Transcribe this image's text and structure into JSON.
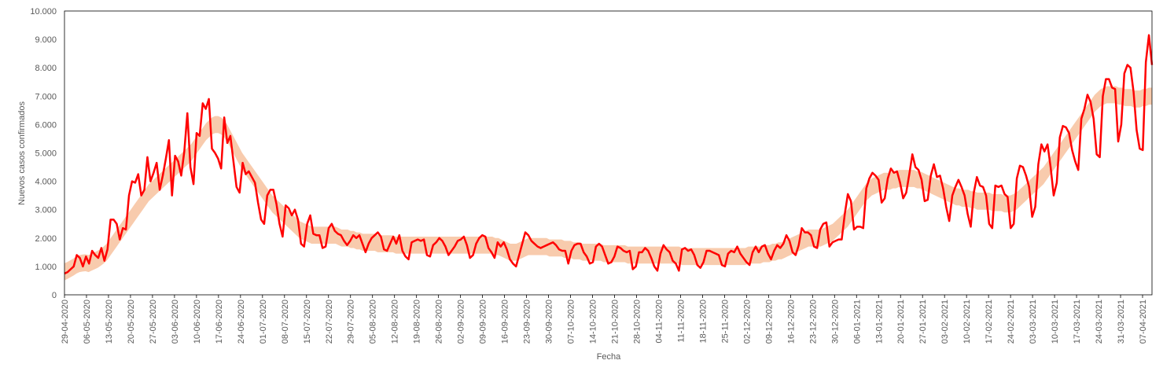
{
  "chart_data": {
    "type": "line",
    "title": "",
    "xlabel": "Fecha",
    "ylabel": "Nuevos casos confirmados",
    "ylim": [
      0,
      10000
    ],
    "yticks": [
      0,
      1000,
      2000,
      3000,
      4000,
      5000,
      6000,
      7000,
      8000,
      9000,
      10000
    ],
    "ytick_labels": [
      "0",
      "1.000",
      "2.000",
      "3.000",
      "4.000",
      "5.000",
      "6.000",
      "7.000",
      "8.000",
      "9.000",
      "10.000"
    ],
    "xticks": [
      "29-04-2020",
      "06-05-2020",
      "13-05-2020",
      "20-05-2020",
      "27-05-2020",
      "03-06-2020",
      "10-06-2020",
      "17-06-2020",
      "24-06-2020",
      "01-07-2020",
      "08-07-2020",
      "15-07-2020",
      "22-07-2020",
      "29-07-2020",
      "05-08-2020",
      "12-08-2020",
      "19-08-2020",
      "26-08-2020",
      "02-09-2020",
      "09-09-2020",
      "16-09-2020",
      "23-09-2020",
      "30-09-2020",
      "07-10-2020",
      "14-10-2020",
      "21-10-2020",
      "28-10-2020",
      "04-11-2020",
      "11-11-2020",
      "18-11-2020",
      "25-11-2020",
      "02-12-2020",
      "09-12-2020",
      "16-12-2020",
      "23-12-2020",
      "30-12-2020",
      "06-01-2021",
      "13-01-2021",
      "20-01-2021",
      "27-01-2021",
      "03-02-2021",
      "10-02-2021",
      "17-02-2021",
      "24-02-2021",
      "03-03-2021",
      "10-03-2021",
      "17-03-2021",
      "24-03-2021",
      "31-03-2021",
      "07-04-2021"
    ],
    "grid": false,
    "legend": "none",
    "x_start": "29-04-2020",
    "x_end": "10-04-2021",
    "series": [
      {
        "type": "line",
        "color": "#ff0000",
        "values": [
          750,
          800,
          900,
          1000,
          1400,
          1300,
          1000,
          1350,
          1100,
          1550,
          1400,
          1300,
          1650,
          1200,
          1600,
          2650,
          2650,
          2500,
          1950,
          2350,
          2300,
          3500,
          4000,
          3950,
          4250,
          3500,
          3700,
          4850,
          4000,
          4300,
          4650,
          3700,
          4200,
          4800,
          5450,
          3500,
          4900,
          4700,
          4200,
          5050,
          6400,
          4500,
          3900,
          5700,
          5600,
          6750,
          6550,
          6900,
          5150,
          5000,
          4800,
          4450,
          6250,
          5350,
          5600,
          4700,
          3800,
          3600,
          4650,
          4250,
          4350,
          4150,
          3950,
          3250,
          2650,
          2500,
          3500,
          3700,
          3700,
          3200,
          2500,
          2050,
          3150,
          3050,
          2800,
          3000,
          2650,
          1800,
          1700,
          2500,
          2800,
          2150,
          2100,
          2100,
          1650,
          1700,
          2350,
          2500,
          2250,
          2150,
          2100,
          1900,
          1750,
          1900,
          2100,
          2000,
          2100,
          1800,
          1500,
          1800,
          2000,
          2100,
          2200,
          2050,
          1600,
          1550,
          1800,
          2050,
          1800,
          2100,
          1550,
          1350,
          1250,
          1850,
          1900,
          1950,
          1900,
          1950,
          1400,
          1350,
          1750,
          1850,
          2000,
          1900,
          1700,
          1400,
          1550,
          1700,
          1900,
          1950,
          2050,
          1750,
          1300,
          1400,
          1800,
          2000,
          2100,
          2050,
          1650,
          1500,
          1300,
          1850,
          1700,
          1850,
          1600,
          1250,
          1100,
          1000,
          1400,
          1800,
          2200,
          2100,
          1900,
          1800,
          1700,
          1650,
          1700,
          1750,
          1800,
          1850,
          1750,
          1600,
          1550,
          1550,
          1100,
          1550,
          1750,
          1800,
          1800,
          1500,
          1350,
          1100,
          1150,
          1700,
          1800,
          1700,
          1400,
          1100,
          1150,
          1350,
          1700,
          1650,
          1550,
          1500,
          1550,
          900,
          1000,
          1500,
          1500,
          1650,
          1550,
          1300,
          1000,
          850,
          1450,
          1750,
          1600,
          1500,
          1200,
          1100,
          850,
          1600,
          1650,
          1550,
          1600,
          1400,
          1050,
          950,
          1150,
          1550,
          1550,
          1500,
          1450,
          1400,
          1050,
          1000,
          1450,
          1550,
          1500,
          1700,
          1450,
          1300,
          1150,
          1050,
          1500,
          1700,
          1500,
          1700,
          1750,
          1450,
          1250,
          1550,
          1750,
          1650,
          1800,
          2100,
          1900,
          1500,
          1400,
          1750,
          2350,
          2200,
          2200,
          2100,
          1700,
          1650,
          2300,
          2500,
          2550,
          1700,
          1850,
          1900,
          1950,
          1950,
          2850,
          3550,
          3300,
          2300,
          2400,
          2400,
          2350,
          3750,
          4100,
          4300,
          4200,
          4050,
          3250,
          3400,
          4100,
          4450,
          4300,
          4350,
          3950,
          3400,
          3600,
          4250,
          4950,
          4500,
          4400,
          4050,
          3300,
          3350,
          4200,
          4600,
          4150,
          4200,
          3750,
          3100,
          2600,
          3500,
          3800,
          4050,
          3800,
          3500,
          2850,
          2400,
          3600,
          4150,
          3850,
          3800,
          3500,
          2500,
          2350,
          3850,
          3800,
          3850,
          3550,
          3450,
          2350,
          2500,
          4100,
          4550,
          4500,
          4200,
          3800,
          2750,
          3100,
          4600,
          5300,
          5050,
          5300,
          4500,
          3500,
          3950,
          5550,
          5950,
          5900,
          5700,
          5100,
          4700,
          4400,
          6200,
          6550,
          7050,
          6800,
          6200,
          4950,
          4850,
          7000,
          7600,
          7600,
          7300,
          7250,
          5400,
          6000,
          7800,
          8100,
          8000,
          7150,
          5800,
          5150,
          5100,
          8200,
          9150,
          8100
        ]
      },
      {
        "type": "band",
        "color": "#f8cbad",
        "center": [
          810,
          860,
          920,
          980,
          1050,
          1100,
          1120,
          1130,
          1100,
          1150,
          1200,
          1250,
          1320,
          1400,
          1500,
          1650,
          1800,
          1950,
          2100,
          2250,
          2400,
          2550,
          2700,
          2850,
          3000,
          3150,
          3300,
          3450,
          3600,
          3700,
          3800,
          3900,
          4000,
          4100,
          4200,
          4300,
          4400,
          4500,
          4600,
          4700,
          4800,
          4900,
          5000,
          5150,
          5300,
          5450,
          5600,
          5750,
          5850,
          5950,
          6000,
          6000,
          5950,
          5850,
          5700,
          5500,
          5300,
          5100,
          4900,
          4700,
          4550,
          4400,
          4250,
          4100,
          3950,
          3800,
          3650,
          3500,
          3350,
          3200,
          3100,
          3000,
          2900,
          2800,
          2700,
          2600,
          2500,
          2400,
          2300,
          2250,
          2200,
          2150,
          2100,
          2100,
          2100,
          2100,
          2100,
          2100,
          2100,
          2100,
          2100,
          2050,
          2000,
          2000,
          2000,
          1950,
          1950,
          1900,
          1900,
          1850,
          1850,
          1850,
          1850,
          1850,
          1800,
          1800,
          1800,
          1800,
          1800,
          1800,
          1750,
          1750,
          1750,
          1750,
          1750,
          1750,
          1750,
          1750,
          1750,
          1750,
          1750,
          1750,
          1750,
          1750,
          1750,
          1750,
          1750,
          1750,
          1750,
          1750,
          1750,
          1750,
          1750,
          1750,
          1750,
          1750,
          1750,
          1750,
          1750,
          1750,
          1750,
          1750,
          1750,
          1700,
          1700,
          1650,
          1600,
          1550,
          1500,
          1500,
          1500,
          1550,
          1600,
          1650,
          1700,
          1700,
          1700,
          1700,
          1700,
          1700,
          1700,
          1650,
          1650,
          1650,
          1650,
          1650,
          1600,
          1600,
          1600,
          1550,
          1550,
          1550,
          1500,
          1500,
          1500,
          1500,
          1500,
          1500,
          1500,
          1450,
          1450,
          1450,
          1450,
          1450,
          1450,
          1450,
          1450,
          1400,
          1400,
          1400,
          1400,
          1400,
          1400,
          1400,
          1400,
          1400,
          1400,
          1400,
          1400,
          1400,
          1400,
          1400,
          1400,
          1400,
          1400,
          1350,
          1350,
          1350,
          1350,
          1350,
          1350,
          1350,
          1350,
          1350,
          1350,
          1350,
          1350,
          1350,
          1350,
          1350,
          1350,
          1350,
          1350,
          1350,
          1350,
          1350,
          1350,
          1400,
          1400,
          1400,
          1400,
          1400,
          1450,
          1450,
          1450,
          1500,
          1500,
          1550,
          1550,
          1600,
          1650,
          1700,
          1750,
          1800,
          1850,
          1900,
          1950,
          2000,
          2000,
          2000,
          2000,
          2000,
          2050,
          2100,
          2150,
          2200,
          2300,
          2400,
          2500,
          2600,
          2700,
          2850,
          3000,
          3150,
          3300,
          3450,
          3600,
          3700,
          3800,
          3850,
          3900,
          3950,
          4000,
          4000,
          4000,
          4050,
          4050,
          4100,
          4100,
          4100,
          4100,
          4100,
          4100,
          4050,
          4050,
          4000,
          3950,
          3900,
          3850,
          3800,
          3750,
          3700,
          3650,
          3600,
          3550,
          3500,
          3450,
          3450,
          3400,
          3400,
          3400,
          3350,
          3350,
          3300,
          3300,
          3300,
          3300,
          3300,
          3250,
          3250,
          3250,
          3250,
          3200,
          3200,
          3200,
          3250,
          3300,
          3400,
          3500,
          3600,
          3700,
          3800,
          3900,
          4000,
          4100,
          4200,
          4350,
          4500,
          4650,
          4800,
          4950,
          5100,
          5250,
          5400,
          5550,
          5700,
          5850,
          6000,
          6150,
          6300,
          6450,
          6600,
          6750,
          6850,
          6950,
          7000,
          7050,
          7050,
          7050,
          7050,
          7000,
          7000,
          6950,
          6950,
          6950,
          6900,
          6900,
          6900,
          6950,
          6950,
          7000,
          7000
        ],
        "half_width": 300
      }
    ]
  }
}
